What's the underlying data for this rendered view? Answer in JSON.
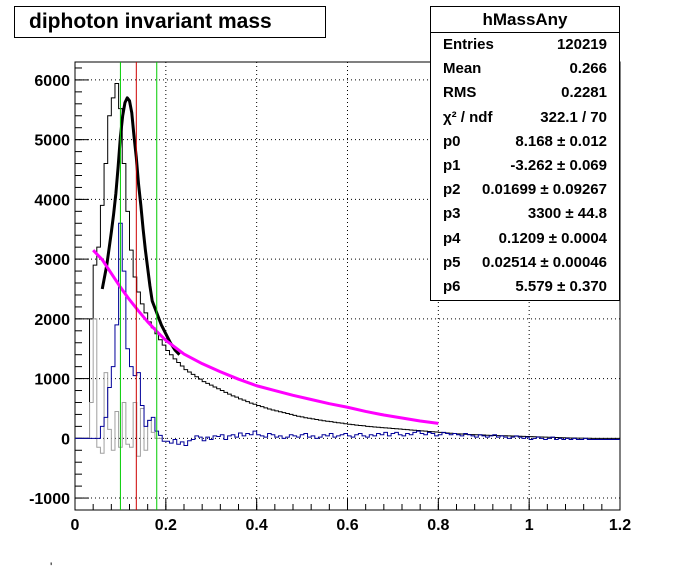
{
  "chart_data": {
    "type": "line",
    "title": "diphoton invariant mass",
    "xlim": [
      0,
      1.2
    ],
    "ylim": [
      -1200,
      6300
    ],
    "xticks": [
      0,
      0.2,
      0.4,
      0.6,
      0.8,
      1,
      1.2
    ],
    "xtick_labels": [
      "0",
      "0.2",
      "0.4",
      "0.6",
      "0.8",
      "1",
      "1.2"
    ],
    "yticks": [
      -1000,
      0,
      1000,
      2000,
      3000,
      4000,
      5000,
      6000
    ],
    "ytick_labels": [
      "-1000",
      "0",
      "1000",
      "2000",
      "3000",
      "4000",
      "5000",
      "6000"
    ],
    "grid": true,
    "bin_width": 0.008,
    "vertical_lines": [
      {
        "x": 0.1,
        "color": "#00cc00"
      },
      {
        "x": 0.135,
        "color": "#cc0000"
      },
      {
        "x": 0.18,
        "color": "#00cc00"
      }
    ],
    "series": [
      {
        "color": "#000000",
        "style": "histogram",
        "x_start": 0.0,
        "values": [
          0,
          0,
          0,
          0,
          2000,
          2900,
          3200,
          3900,
          4600,
          5400,
          5700,
          5940,
          5520,
          4600,
          3800,
          3150,
          2700,
          2450,
          2250,
          2100,
          1950,
          1850,
          1750,
          1650,
          1560,
          1470,
          1400,
          1330,
          1270,
          1210,
          1150,
          1110,
          1070,
          1030,
          990,
          950,
          920,
          890,
          860,
          830,
          800,
          770,
          740,
          710,
          690,
          660,
          640,
          615,
          590,
          570,
          550,
          530,
          510,
          490,
          475,
          460,
          445,
          430,
          415,
          400,
          385,
          370,
          360,
          345,
          335,
          325,
          315,
          305,
          295,
          285,
          280,
          270,
          260,
          255,
          245,
          235,
          230,
          220,
          215,
          210,
          200,
          195,
          190,
          185,
          180,
          175,
          170,
          165,
          160,
          155,
          150,
          145,
          140,
          135,
          130,
          125,
          120,
          115,
          110,
          105,
          100,
          95,
          90,
          85,
          80,
          75,
          72,
          68,
          65,
          62,
          60,
          57,
          55,
          52,
          50,
          48,
          46,
          44,
          42,
          40,
          38,
          36,
          34,
          32,
          30,
          28,
          26,
          24,
          22,
          20,
          18,
          16,
          14,
          12,
          10,
          8,
          6,
          5,
          4,
          3,
          2,
          1,
          0,
          0,
          0,
          0,
          0,
          0,
          0,
          0
        ]
      },
      {
        "color": "#a0a0a0",
        "style": "histogram",
        "x_start": 0.0,
        "values": [
          0,
          0,
          0,
          0,
          600,
          2000,
          -150,
          -250,
          1100,
          150,
          -200,
          450,
          -150,
          600,
          -100,
          -150,
          600,
          -300,
          500,
          -200,
          300,
          100,
          0,
          0
        ]
      },
      {
        "color": "#000099",
        "style": "histogram",
        "x_start": 0.0,
        "values": [
          0,
          0,
          0,
          0,
          0,
          0,
          0,
          200,
          350,
          850,
          1200,
          1900,
          3600,
          2800,
          1500,
          1200,
          1050,
          1100,
          550,
          200,
          300,
          350,
          120,
          50,
          -50,
          -50,
          -80,
          -20,
          -100,
          -60,
          -120,
          -40,
          -20,
          40,
          20,
          -40,
          20,
          -20,
          40,
          30,
          60,
          -20,
          40,
          60,
          20,
          90,
          40,
          80,
          60,
          120,
          60,
          40,
          20,
          80,
          60,
          20,
          40,
          0,
          20,
          60,
          40,
          20,
          60,
          80,
          20,
          40,
          0,
          20,
          60,
          40,
          80,
          20,
          40,
          60,
          80,
          40,
          20,
          60,
          80,
          40,
          20,
          60,
          40,
          80,
          60,
          100,
          40,
          80,
          100,
          60,
          40,
          80,
          60,
          100,
          120,
          80,
          60,
          100,
          80,
          40,
          60,
          100,
          80,
          60,
          80,
          60,
          40,
          80,
          60,
          40,
          20,
          60,
          40,
          20,
          40,
          60,
          20,
          40,
          20,
          0,
          20,
          40,
          20,
          0,
          20,
          -20,
          0,
          20,
          0,
          -20,
          0,
          20,
          -20,
          0,
          -20,
          0,
          -20,
          0,
          -20,
          -20,
          0,
          -20,
          -20,
          -20,
          -20,
          -20,
          -20,
          -20,
          -20,
          -20
        ]
      },
      {
        "color": "#000000",
        "style": "curve",
        "x": [
          0.06,
          0.07,
          0.08,
          0.085,
          0.09,
          0.095,
          0.1,
          0.105,
          0.11,
          0.115,
          0.12,
          0.125,
          0.13,
          0.135,
          0.14,
          0.145,
          0.15,
          0.155,
          0.16,
          0.165,
          0.17,
          0.18,
          0.19,
          0.2,
          0.21,
          0.22,
          0.23
        ],
        "y": [
          2500,
          2900,
          3450,
          3750,
          4100,
          4550,
          5050,
          5400,
          5620,
          5700,
          5650,
          5450,
          5050,
          4700,
          4250,
          3900,
          3500,
          3150,
          2850,
          2550,
          2300,
          2100,
          1900,
          1750,
          1600,
          1480,
          1400
        ]
      },
      {
        "color": "#ff00ff",
        "style": "curve",
        "x": [
          0.04,
          0.06,
          0.08,
          0.1,
          0.12,
          0.14,
          0.16,
          0.18,
          0.2,
          0.24,
          0.28,
          0.32,
          0.36,
          0.4,
          0.44,
          0.48,
          0.52,
          0.56,
          0.6,
          0.64,
          0.68,
          0.72,
          0.76,
          0.8
        ],
        "y": [
          3150,
          2990,
          2760,
          2530,
          2320,
          2130,
          1950,
          1790,
          1640,
          1410,
          1250,
          1115,
          990,
          880,
          800,
          720,
          650,
          580,
          520,
          450,
          390,
          340,
          290,
          250
        ]
      }
    ]
  },
  "stats": {
    "title": "hMassAny",
    "rows": [
      {
        "label": "Entries",
        "value": "120219"
      },
      {
        "label": "Mean",
        "value": "0.266"
      },
      {
        "label": "RMS",
        "value": "0.2281"
      },
      {
        "label": "χ² / ndf",
        "value": "322.1 / 70"
      },
      {
        "label": "p0",
        "value": "8.168 ± 0.012"
      },
      {
        "label": "p1",
        "value": "-3.262 ± 0.069"
      },
      {
        "label": "p2",
        "value": "0.01699 ± 0.09267"
      },
      {
        "label": "p3",
        "value": "3300 ± 44.8"
      },
      {
        "label": "p4",
        "value": "0.1209 ± 0.0004"
      },
      {
        "label": "p5",
        "value": "0.02514 ± 0.00046"
      },
      {
        "label": "p6",
        "value": "5.579 ± 0.370"
      }
    ]
  },
  "footer_mark": "'"
}
